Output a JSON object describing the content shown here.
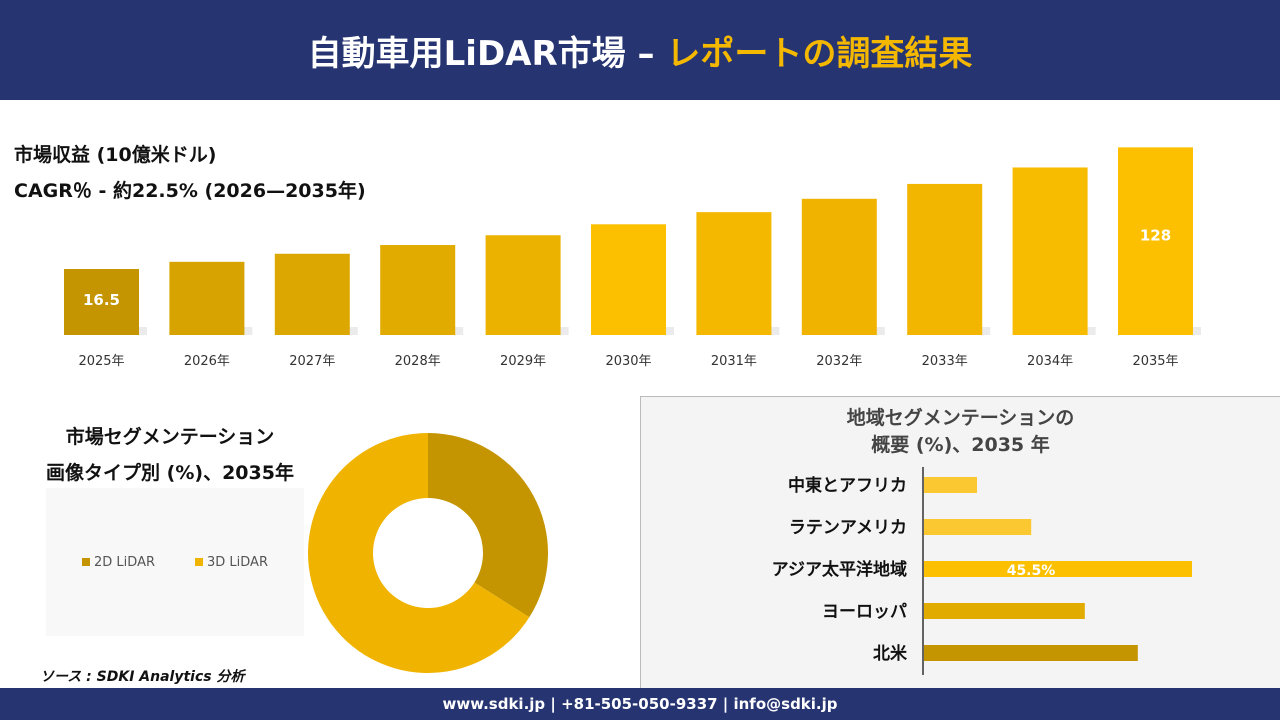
{
  "header": {
    "title_main": "自動車用LiDAR市場 –",
    "title_accent": "レポートの調査結果"
  },
  "colors": {
    "navy": "#263472",
    "accent": "#f5b800",
    "dark_gold": "#c49500",
    "gold": "#f0b400"
  },
  "chart_data": [
    {
      "type": "bar",
      "title": "市場収益 (10億米ドル)",
      "subtitle": "CAGR％ - 約22.5% (2026—2035年)",
      "categories": [
        "2025年",
        "2026年",
        "2027年",
        "2028年",
        "2029年",
        "2030年",
        "2031年",
        "2032年",
        "2033年",
        "2034年",
        "2035年"
      ],
      "values": [
        16.5,
        20.2,
        24.8,
        30.3,
        37.1,
        45.5,
        55.8,
        68.3,
        83.7,
        102.5,
        128
      ],
      "data_labels": {
        "0": "16.5",
        "10": "128"
      },
      "colors": [
        "#c49500",
        "#d6a300",
        "#dca700",
        "#e2ab00",
        "#ecb200",
        "#fcc000",
        "#f5b800",
        "#f0b400",
        "#f2b500",
        "#f7bb00",
        "#fcc000"
      ]
    },
    {
      "type": "pie",
      "title_line1": "市場セグメンテーション",
      "title_line2": "画像タイプ別 (%)、2035年",
      "labels": [
        "2D LiDAR",
        "3D LiDAR"
      ],
      "values": [
        34,
        66
      ],
      "colors": [
        "#c49500",
        "#f0b400"
      ],
      "donut": true,
      "legend": "left"
    },
    {
      "type": "bar",
      "orientation": "horizontal",
      "title_line1": "地域セグメンテーションの",
      "title_line2": "概要 (%)、2035 年",
      "categories": [
        "中東とアフリカ",
        "ラテンアメリカ",
        "アジア太平洋地域",
        "ヨーロッパ",
        "北米"
      ],
      "values": [
        9,
        18.2,
        45.5,
        27.3,
        36.3
      ],
      "data_labels": {
        "2": "45.5%"
      },
      "colors": [
        "#fcc832",
        "#fcc832",
        "#fcc000",
        "#e2ab00",
        "#c49500"
      ]
    }
  ],
  "source": "ソース : SDKI Analytics 分析",
  "footer": {
    "contact": "www.sdki.jp | +81-505-050-9337 | info@sdki.jp"
  }
}
